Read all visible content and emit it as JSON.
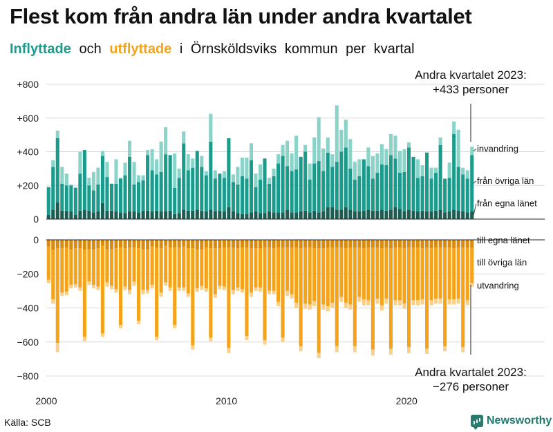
{
  "title": "Flest kom från andra län under andra kvartalet",
  "subtitle": {
    "inflyttade": "Inflyttade",
    "och": "och",
    "utflyttade": "utflyttade",
    "w1": "i",
    "w2": "Örnsköldsviks",
    "w3": "kommun",
    "w4": "per",
    "w5": "kvartal"
  },
  "source": "Källa: SCB",
  "brand": "Newsworthy",
  "colors": {
    "in_egna": "#1c5c52",
    "in_ovriga": "#1a9b8c",
    "in_invandring": "#89d3c8",
    "out_egna": "#d98a10",
    "out_ovriga": "#f5a31a",
    "out_utvandring": "#fbd08a",
    "gridline": "#d8d8d8"
  },
  "chart_data": {
    "type": "bar",
    "stacked": true,
    "x_start": 2000,
    "x_ticks": [
      "2000",
      "2010",
      "2020"
    ],
    "y_ticks_top": [
      "+800",
      "+600",
      "+400",
      "+200",
      "0"
    ],
    "y_ticks_bottom": [
      "0",
      "−200",
      "−400",
      "−600",
      "−800"
    ],
    "ylim_top": [
      0,
      800
    ],
    "ylim_bottom": [
      -800,
      0
    ],
    "series_in": [
      {
        "name": "från egna länet",
        "values": [
          25,
          55,
          100,
          50,
          50,
          45,
          25,
          50,
          55,
          50,
          40,
          45,
          95,
          50,
          50,
          45,
          40,
          35,
          45,
          45,
          40,
          50,
          50,
          45,
          50,
          45,
          45,
          50,
          30,
          35,
          55,
          50,
          50,
          55,
          50,
          45,
          55,
          45,
          50,
          45,
          70,
          45,
          35,
          30,
          30,
          40,
          45,
          35,
          35,
          45,
          40,
          40,
          40,
          55,
          40,
          40,
          45,
          50,
          40,
          50,
          40,
          45,
          70,
          70,
          55,
          55,
          70,
          55,
          45,
          45,
          50,
          55,
          50,
          50,
          55,
          50,
          55,
          70,
          60,
          45,
          55,
          50,
          45,
          50,
          45,
          45,
          50,
          55,
          40,
          45,
          55,
          50,
          45,
          40,
          45
        ]
      },
      {
        "name": "från övriga län",
        "values": [
          165,
          255,
          380,
          160,
          150,
          155,
          160,
          220,
          355,
          150,
          130,
          160,
          280,
          200,
          160,
          165,
          200,
          225,
          325,
          160,
          180,
          180,
          330,
          245,
          215,
          235,
          340,
          330,
          155,
          210,
          395,
          240,
          255,
          350,
          260,
          215,
          405,
          195,
          220,
          200,
          410,
          175,
          170,
          225,
          210,
          310,
          145,
          200,
          325,
          165,
          215,
          290,
          335,
          260,
          245,
          255,
          325,
          350,
          195,
          280,
          305,
          240,
          325,
          240,
          285,
          345,
          355,
          245,
          190,
          210,
          305,
          260,
          190,
          225,
          270,
          270,
          325,
          290,
          215,
          235,
          370,
          320,
          200,
          205,
          350,
          195,
          225,
          385,
          200,
          200,
          450,
          260,
          220,
          200,
          335
        ]
      },
      {
        "name": "invandring",
        "values": [
          0,
          40,
          45,
          100,
          70,
          5,
          5,
          130,
          0,
          45,
          110,
          100,
          30,
          90,
          0,
          145,
          5,
          75,
          95,
          135,
          40,
          30,
          30,
          125,
          90,
          180,
          160,
          0,
          205,
          55,
          70,
          95,
          55,
          0,
          65,
          25,
          165,
          50,
          0,
          40,
          0,
          45,
          105,
          110,
          125,
          100,
          80,
          90,
          0,
          35,
          45,
          55,
          65,
          150,
          105,
          200,
          0,
          40,
          95,
          155,
          260,
          135,
          90,
          75,
          335,
          130,
          165,
          175,
          105,
          100,
          0,
          110,
          135,
          115,
          120,
          95,
          125,
          135,
          130,
          135,
          30,
          0,
          110,
          65,
          0,
          65,
          30,
          45,
          0,
          90,
          75,
          220,
          40,
          50,
          50
        ]
      }
    ],
    "series_out": [
      {
        "name": "till egna länet",
        "values": [
          -40,
          -60,
          -50,
          -50,
          -45,
          -55,
          -50,
          -50,
          -60,
          -55,
          -55,
          -50,
          -35,
          -55,
          -55,
          -50,
          -45,
          -50,
          -45,
          -45,
          -50,
          -55,
          -55,
          -40,
          -45,
          -50,
          -35,
          -45,
          -45,
          -45,
          -40,
          -50,
          -50,
          -55,
          -55,
          -45,
          -50,
          -50,
          -50,
          -45,
          -45,
          -45,
          -50,
          -45,
          -45,
          -50,
          -50,
          -50,
          -45,
          -45,
          -50,
          -45,
          -45,
          -45,
          -45,
          -45,
          -50,
          -45,
          -45,
          -50,
          -50,
          -50,
          -45,
          -45,
          -45,
          -45,
          -50,
          -45,
          -45,
          -45,
          -50,
          -45,
          -45,
          -45,
          -50,
          -45,
          -50,
          -45,
          -45,
          -50,
          -45,
          -45,
          -45,
          -50,
          -45,
          -50,
          -45,
          -45,
          -45,
          -45,
          -50,
          -45,
          -45,
          -45,
          -45
        ]
      },
      {
        "name": "till övriga län",
        "values": [
          -195,
          -290,
          -555,
          -260,
          -260,
          -210,
          -210,
          -230,
          -510,
          -190,
          -210,
          -225,
          -515,
          -195,
          -215,
          -240,
          -455,
          -225,
          -250,
          -200,
          -425,
          -240,
          -240,
          -225,
          -525,
          -260,
          -215,
          -235,
          -455,
          -235,
          -240,
          -265,
          -570,
          -230,
          -215,
          -240,
          -525,
          -270,
          -220,
          -230,
          -590,
          -250,
          -230,
          -245,
          -520,
          -260,
          -230,
          -230,
          -545,
          -255,
          -250,
          -320,
          -530,
          -255,
          -275,
          -325,
          -575,
          -330,
          -335,
          -310,
          -615,
          -330,
          -345,
          -325,
          -580,
          -290,
          -320,
          -335,
          -580,
          -290,
          -300,
          -310,
          -600,
          -300,
          -335,
          -300,
          -590,
          -310,
          -310,
          -325,
          -585,
          -310,
          -310,
          -300,
          -595,
          -305,
          -300,
          -300,
          -580,
          -305,
          -300,
          -300,
          -585,
          -310,
          -210
        ]
      },
      {
        "name": "utvandring",
        "values": [
          -20,
          -25,
          -55,
          -20,
          -20,
          -20,
          -20,
          -20,
          -25,
          -20,
          -20,
          -20,
          -20,
          -25,
          -20,
          -20,
          -20,
          -20,
          -25,
          -25,
          -20,
          -25,
          -20,
          -20,
          -20,
          -25,
          -20,
          -20,
          -20,
          -20,
          -20,
          -20,
          -25,
          -20,
          -25,
          -20,
          -20,
          -20,
          -20,
          -20,
          -30,
          -25,
          -20,
          -20,
          -25,
          -25,
          -20,
          -25,
          -25,
          -20,
          -20,
          -25,
          -25,
          -30,
          -25,
          -30,
          -30,
          -30,
          -30,
          -30,
          -30,
          -30,
          -30,
          -30,
          -35,
          -30,
          -30,
          -30,
          -35,
          -30,
          -35,
          -30,
          -35,
          -30,
          -30,
          -30,
          -35,
          -30,
          -30,
          -30,
          -35,
          -30,
          -30,
          -30,
          -30,
          -30,
          -30,
          -30,
          -30,
          -30,
          -30,
          -30,
          -30,
          -30,
          -20
        ]
      }
    ],
    "labels_in": [
      "invandring",
      "från övriga län",
      "från egna länet"
    ],
    "labels_out": [
      "till egna länet",
      "till övriga län",
      "utvandring"
    ],
    "annotation_top": [
      "Andra kvartalet 2023:",
      "+433 personer"
    ],
    "annotation_bottom": [
      "Andra kvartalet 2023:",
      "−276 personer"
    ]
  }
}
